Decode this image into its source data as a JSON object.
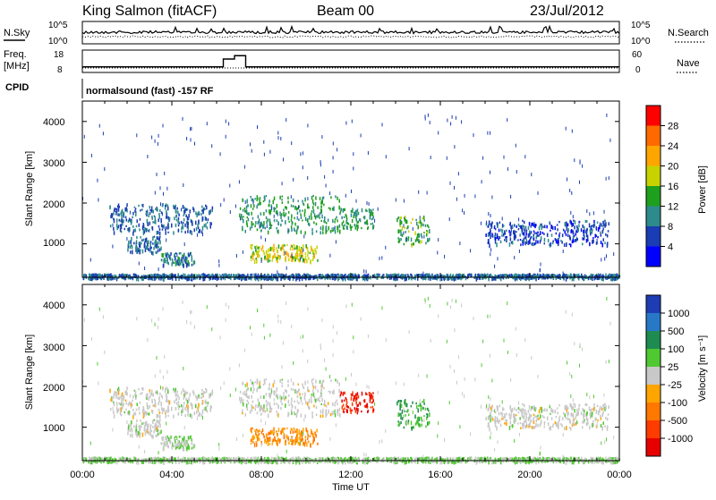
{
  "header": {
    "station": "King Salmon (fitACF)",
    "beam": "Beam 00",
    "date": "23/Jul/2012"
  },
  "noise_panel": {
    "left_label": "N.Sky",
    "right_label": "N.Search",
    "left_ticks": [
      "10^5",
      "10^0"
    ],
    "right_ticks": [
      "10^5",
      "10^0"
    ]
  },
  "freq_panel": {
    "left_label_line1": "Freq.",
    "left_label_line2": "[MHz]",
    "right_label": "Nave",
    "left_ticks": [
      "18",
      "8"
    ],
    "right_ticks": [
      "60",
      "0"
    ]
  },
  "cpid": {
    "label": "CPID",
    "text": "normalsound (fast) -157 RF"
  },
  "axes": {
    "ylabel": "Slant Range [km]",
    "xlabel": "Time UT",
    "y_ticks": [
      "4000",
      "3000",
      "2000",
      "1000"
    ],
    "x_ticks": [
      "00:00",
      "04:00",
      "08:00",
      "12:00",
      "16:00",
      "20:00",
      "00:00"
    ]
  },
  "power_scale": {
    "title": "Power [dB]",
    "ticks": [
      "28",
      "24",
      "20",
      "16",
      "12",
      "8",
      "4"
    ],
    "colors": [
      "#ff0000",
      "#ff6a00",
      "#ffa500",
      "#c8d200",
      "#1ea01e",
      "#2e8b8b",
      "#1a3cb4",
      "#0000ff"
    ]
  },
  "velocity_scale": {
    "title": "Velocity [m s⁻¹]",
    "ticks": [
      "1000",
      "500",
      "100",
      "25",
      "-25",
      "-100",
      "-500",
      "-1000"
    ],
    "colors": [
      "#1e3cb4",
      "#2878c8",
      "#1e8c50",
      "#50c832",
      "#c8c8c8",
      "#ffa500",
      "#ff7800",
      "#ff3c00",
      "#e60000"
    ]
  },
  "chart_data": {
    "type": "heatmap",
    "x_range": [
      "00:00",
      "00:00"
    ],
    "y_range_km": [
      180,
      4500
    ],
    "freq_steps_mhz": [
      {
        "t": 0.0,
        "f": 10.5
      },
      {
        "t": 6.3,
        "f": 14.0
      },
      {
        "t": 6.8,
        "f": 15.5
      },
      {
        "t": 7.3,
        "f": 10.5
      },
      {
        "t": 24.0,
        "f": 10.5
      }
    ],
    "echo_regions": [
      {
        "t0": 1.2,
        "t1": 5.8,
        "r0": 1300,
        "r1": 2000,
        "power": 8,
        "velocity": 0
      },
      {
        "t0": 2.0,
        "t1": 3.5,
        "r0": 800,
        "r1": 1200,
        "power": 8,
        "velocity": 0
      },
      {
        "t0": 3.5,
        "t1": 5.0,
        "r0": 500,
        "r1": 800,
        "power": 10,
        "velocity": 25
      },
      {
        "t0": 7.0,
        "t1": 11.5,
        "r0": 1300,
        "r1": 2200,
        "power": 12,
        "velocity": 0
      },
      {
        "t0": 7.5,
        "t1": 10.5,
        "r0": 600,
        "r1": 1000,
        "power": 18,
        "velocity": -100
      },
      {
        "t0": 11.5,
        "t1": 13.0,
        "r0": 1400,
        "r1": 1900,
        "power": 12,
        "velocity": -1000
      },
      {
        "t0": 14.0,
        "t1": 15.5,
        "r0": 1000,
        "r1": 1700,
        "power": 14,
        "velocity": 100
      },
      {
        "t0": 18.0,
        "t1": 23.5,
        "r0": 1000,
        "r1": 1600,
        "power": 6,
        "velocity": 0
      },
      {
        "t0": 0.0,
        "t1": 24.0,
        "r0": 180,
        "r1": 280,
        "power": 8,
        "velocity": 25
      }
    ]
  }
}
